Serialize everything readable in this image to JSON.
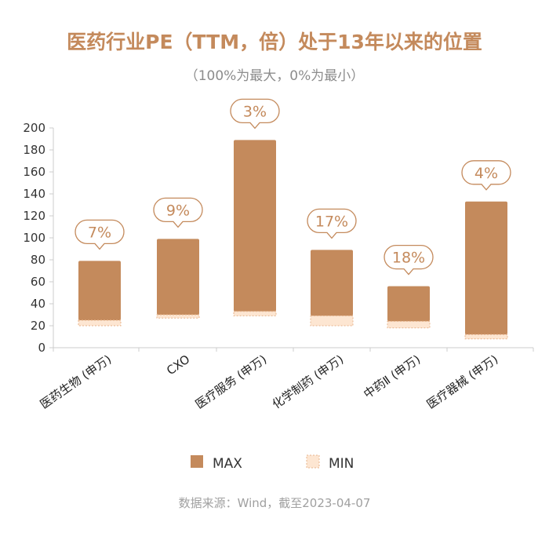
{
  "title": "医药行业PE（TTM，倍）处于13年以来的位置",
  "subtitle": "（100%为最大，0%为最小）",
  "source": "数据来源：Wind，截至2023-04-07",
  "colors": {
    "max_bar": "#c48a5c",
    "min_bar": "#fde6d2",
    "min_border": "#e8b48c",
    "label": "#c48a5c"
  },
  "chart_data": {
    "type": "bar",
    "categories": [
      "医药生物 (申万)",
      "CXO",
      "医疗服务 (申万)",
      "化学制药 (申万)",
      "中药Ⅱ (申万)",
      "医疗器械 (申万)"
    ],
    "series": [
      {
        "name": "MAX",
        "values": [
          79,
          99,
          189,
          89,
          56,
          133
        ]
      },
      {
        "name": "MIN",
        "values": [
          20,
          27,
          29,
          20,
          18,
          8
        ]
      }
    ],
    "min_band_top": [
      25,
      30,
      33,
      29,
      24,
      12
    ],
    "percentile_labels": [
      "7%",
      "9%",
      "3%",
      "17%",
      "18%",
      "4%"
    ],
    "ylim": [
      0,
      200
    ],
    "yticks": [
      0,
      20,
      40,
      60,
      80,
      100,
      120,
      140,
      160,
      180,
      200
    ],
    "legend": [
      "MAX",
      "MIN"
    ],
    "legend_position": "bottom"
  }
}
